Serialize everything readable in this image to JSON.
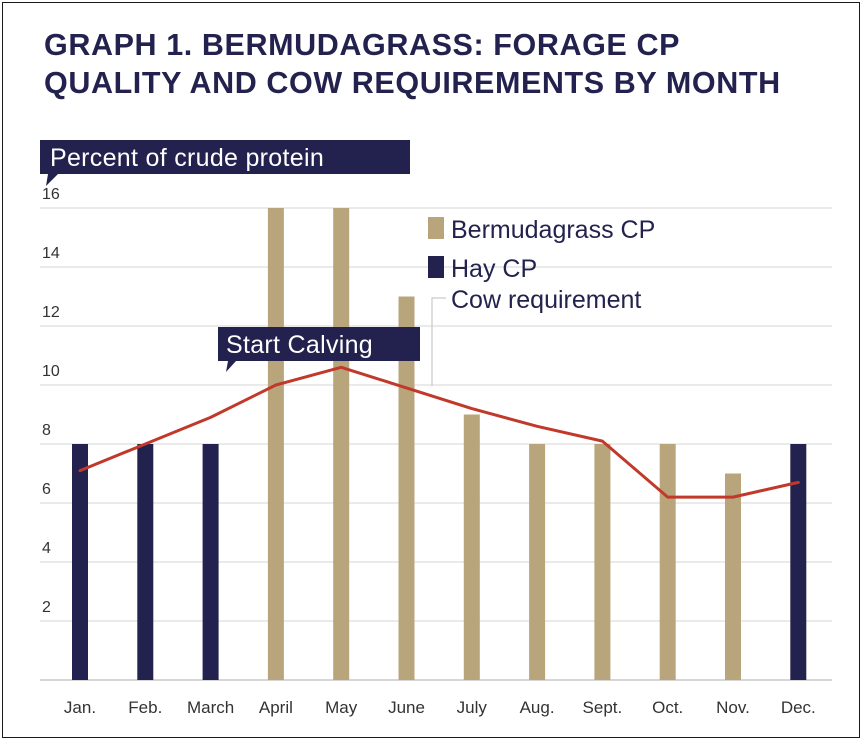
{
  "chart_data": {
    "type": "bar",
    "title_lines": [
      "GRAPH 1. BERMUDAGRASS: FORAGE CP",
      "QUALITY AND COW REQUIREMENTS BY MONTH"
    ],
    "ylabel": "Percent of crude protein",
    "categories": [
      "Jan.",
      "Feb.",
      "March",
      "April",
      "May",
      "June",
      "July",
      "Aug.",
      "Sept.",
      "Oct.",
      "Nov.",
      "Dec."
    ],
    "yticks": [
      2,
      4,
      6,
      8,
      10,
      12,
      14,
      16
    ],
    "ylim": [
      0,
      16
    ],
    "grid": true,
    "legend_position": "top-right",
    "series": [
      {
        "name": "Bermudagrass CP",
        "kind": "bar",
        "color": "#b9a57b",
        "values": [
          null,
          null,
          null,
          16,
          16,
          13,
          9,
          8,
          8,
          8,
          7,
          null
        ]
      },
      {
        "name": "Hay CP",
        "kind": "bar",
        "color": "#23224e",
        "values": [
          8,
          8,
          8,
          null,
          null,
          null,
          null,
          null,
          null,
          null,
          null,
          8
        ]
      },
      {
        "name": "Cow requirement",
        "kind": "line",
        "color": "#c0392b",
        "values": [
          7.1,
          8.0,
          8.9,
          10.0,
          10.6,
          9.9,
          9.2,
          8.6,
          8.1,
          6.2,
          6.2,
          6.7
        ]
      }
    ],
    "annotations": [
      {
        "text": "Start Calving",
        "month": "April"
      }
    ]
  }
}
